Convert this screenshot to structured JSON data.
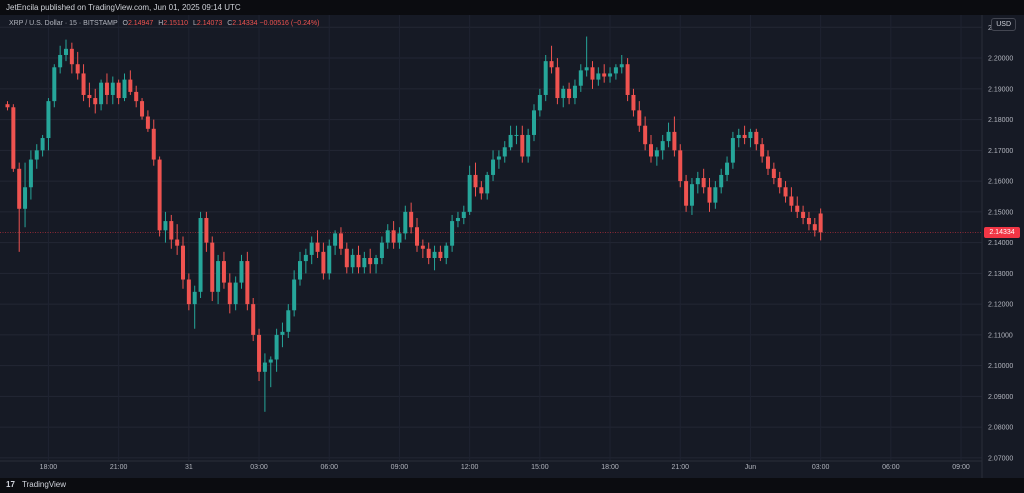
{
  "header": {
    "published_by": "JetEncila published on TradingView.com, Jun 01, 2025 09:14 UTC"
  },
  "legend": {
    "symbol": "XRP / U.S. Dollar · 15 · BITSTAMP",
    "open_label": "O",
    "open": "2.14947",
    "high_label": "H",
    "high": "2.15110",
    "low_label": "L",
    "low": "2.14073",
    "close_label": "C",
    "close": "2.14334",
    "change": "−0.00516 (−0.24%)"
  },
  "currency": "USD",
  "last_price_label": "2.14334",
  "footer": {
    "brand": "TradingView",
    "logo_glyph": "17"
  },
  "colors": {
    "up": "#26a69a",
    "down": "#ef5350",
    "background": "#161a25",
    "price_line": "#f23645"
  },
  "chart_data": {
    "type": "candlestick",
    "y_ticks": [
      "2.21000",
      "2.20000",
      "2.19000",
      "2.18000",
      "2.17000",
      "2.16000",
      "2.15000",
      "2.14000",
      "2.13000",
      "2.12000",
      "2.11000",
      "2.10000",
      "2.09000",
      "2.08000",
      "2.07000"
    ],
    "ylim": [
      2.069,
      2.214
    ],
    "x_ticks": [
      {
        "label": "18:00",
        "i": 7
      },
      {
        "label": "21:00",
        "i": 19
      },
      {
        "label": "31",
        "i": 31
      },
      {
        "label": "03:00",
        "i": 43
      },
      {
        "label": "06:00",
        "i": 55
      },
      {
        "label": "09:00",
        "i": 67
      },
      {
        "label": "12:00",
        "i": 79
      },
      {
        "label": "15:00",
        "i": 91
      },
      {
        "label": "18:00",
        "i": 103
      },
      {
        "label": "21:00",
        "i": 115
      },
      {
        "label": "Jun",
        "i": 127
      },
      {
        "label": "03:00",
        "i": 139
      },
      {
        "label": "06:00",
        "i": 151
      },
      {
        "label": "09:00",
        "i": 163
      }
    ],
    "last_price": 2.14334,
    "candles": [
      [
        2.185,
        2.186,
        2.183,
        2.184
      ],
      [
        2.184,
        2.185,
        2.163,
        2.164
      ],
      [
        2.164,
        2.166,
        2.137,
        2.151
      ],
      [
        2.151,
        2.166,
        2.145,
        2.158
      ],
      [
        2.158,
        2.17,
        2.154,
        2.167
      ],
      [
        2.167,
        2.172,
        2.164,
        2.17
      ],
      [
        2.17,
        2.175,
        2.168,
        2.174
      ],
      [
        2.174,
        2.187,
        2.17,
        2.186
      ],
      [
        2.186,
        2.198,
        2.184,
        2.197
      ],
      [
        2.197,
        2.204,
        2.195,
        2.201
      ],
      [
        2.201,
        2.206,
        2.199,
        2.203
      ],
      [
        2.203,
        2.205,
        2.195,
        2.198
      ],
      [
        2.198,
        2.202,
        2.193,
        2.195
      ],
      [
        2.195,
        2.198,
        2.186,
        2.188
      ],
      [
        2.188,
        2.192,
        2.184,
        2.187
      ],
      [
        2.187,
        2.19,
        2.182,
        2.185
      ],
      [
        2.185,
        2.193,
        2.183,
        2.192
      ],
      [
        2.192,
        2.195,
        2.185,
        2.188
      ],
      [
        2.188,
        2.194,
        2.185,
        2.192
      ],
      [
        2.192,
        2.193,
        2.185,
        2.187
      ],
      [
        2.187,
        2.195,
        2.186,
        2.193
      ],
      [
        2.193,
        2.196,
        2.188,
        2.189
      ],
      [
        2.189,
        2.191,
        2.184,
        2.186
      ],
      [
        2.186,
        2.187,
        2.18,
        2.181
      ],
      [
        2.181,
        2.183,
        2.176,
        2.177
      ],
      [
        2.177,
        2.18,
        2.165,
        2.167
      ],
      [
        2.167,
        2.168,
        2.142,
        2.144
      ],
      [
        2.144,
        2.15,
        2.14,
        2.147
      ],
      [
        2.147,
        2.149,
        2.138,
        2.141
      ],
      [
        2.141,
        2.146,
        2.136,
        2.139
      ],
      [
        2.139,
        2.142,
        2.125,
        2.128
      ],
      [
        2.128,
        2.13,
        2.118,
        2.12
      ],
      [
        2.12,
        2.126,
        2.112,
        2.124
      ],
      [
        2.124,
        2.15,
        2.122,
        2.148
      ],
      [
        2.148,
        2.15,
        2.137,
        2.14
      ],
      [
        2.14,
        2.142,
        2.121,
        2.124
      ],
      [
        2.124,
        2.136,
        2.12,
        2.134
      ],
      [
        2.134,
        2.137,
        2.125,
        2.127
      ],
      [
        2.127,
        2.13,
        2.117,
        2.12
      ],
      [
        2.12,
        2.129,
        2.118,
        2.127
      ],
      [
        2.127,
        2.136,
        2.125,
        2.134
      ],
      [
        2.134,
        2.137,
        2.118,
        2.12
      ],
      [
        2.12,
        2.122,
        2.108,
        2.11
      ],
      [
        2.11,
        2.112,
        2.095,
        2.098
      ],
      [
        2.098,
        2.104,
        2.085,
        2.101
      ],
      [
        2.101,
        2.103,
        2.093,
        2.102
      ],
      [
        2.102,
        2.112,
        2.098,
        2.11
      ],
      [
        2.11,
        2.114,
        2.106,
        2.111
      ],
      [
        2.111,
        2.12,
        2.109,
        2.118
      ],
      [
        2.118,
        2.131,
        2.116,
        2.128
      ],
      [
        2.128,
        2.137,
        2.126,
        2.134
      ],
      [
        2.134,
        2.138,
        2.13,
        2.136
      ],
      [
        2.136,
        2.142,
        2.133,
        2.14
      ],
      [
        2.14,
        2.144,
        2.135,
        2.137
      ],
      [
        2.137,
        2.14,
        2.128,
        2.13
      ],
      [
        2.13,
        2.141,
        2.128,
        2.139
      ],
      [
        2.139,
        2.144,
        2.136,
        2.143
      ],
      [
        2.143,
        2.145,
        2.136,
        2.138
      ],
      [
        2.138,
        2.14,
        2.13,
        2.132
      ],
      [
        2.132,
        2.138,
        2.13,
        2.136
      ],
      [
        2.136,
        2.139,
        2.13,
        2.132
      ],
      [
        2.132,
        2.137,
        2.13,
        2.135
      ],
      [
        2.135,
        2.138,
        2.13,
        2.133
      ],
      [
        2.133,
        2.136,
        2.13,
        2.135
      ],
      [
        2.135,
        2.142,
        2.133,
        2.14
      ],
      [
        2.14,
        2.146,
        2.138,
        2.144
      ],
      [
        2.144,
        2.147,
        2.138,
        2.14
      ],
      [
        2.14,
        2.145,
        2.138,
        2.143
      ],
      [
        2.143,
        2.152,
        2.141,
        2.15
      ],
      [
        2.15,
        2.153,
        2.143,
        2.145
      ],
      [
        2.145,
        2.148,
        2.137,
        2.139
      ],
      [
        2.139,
        2.141,
        2.135,
        2.138
      ],
      [
        2.138,
        2.14,
        2.133,
        2.135
      ],
      [
        2.135,
        2.139,
        2.131,
        2.137
      ],
      [
        2.137,
        2.139,
        2.134,
        2.135
      ],
      [
        2.135,
        2.14,
        2.133,
        2.139
      ],
      [
        2.139,
        2.149,
        2.137,
        2.147
      ],
      [
        2.147,
        2.15,
        2.145,
        2.148
      ],
      [
        2.148,
        2.152,
        2.146,
        2.15
      ],
      [
        2.15,
        2.165,
        2.149,
        2.162
      ],
      [
        2.162,
        2.166,
        2.155,
        2.158
      ],
      [
        2.158,
        2.16,
        2.154,
        2.156
      ],
      [
        2.156,
        2.163,
        2.154,
        2.162
      ],
      [
        2.162,
        2.17,
        2.16,
        2.167
      ],
      [
        2.167,
        2.17,
        2.164,
        2.168
      ],
      [
        2.168,
        2.173,
        2.166,
        2.171
      ],
      [
        2.171,
        2.178,
        2.17,
        2.175
      ],
      [
        2.175,
        2.178,
        2.172,
        2.175
      ],
      [
        2.175,
        2.178,
        2.166,
        2.168
      ],
      [
        2.168,
        2.177,
        2.166,
        2.175
      ],
      [
        2.175,
        2.185,
        2.173,
        2.183
      ],
      [
        2.183,
        2.19,
        2.181,
        2.188
      ],
      [
        2.188,
        2.201,
        2.186,
        2.199
      ],
      [
        2.199,
        2.204,
        2.195,
        2.197
      ],
      [
        2.197,
        2.2,
        2.185,
        2.187
      ],
      [
        2.187,
        2.191,
        2.184,
        2.19
      ],
      [
        2.19,
        2.192,
        2.185,
        2.187
      ],
      [
        2.187,
        2.193,
        2.185,
        2.191
      ],
      [
        2.191,
        2.198,
        2.189,
        2.196
      ],
      [
        2.196,
        2.207,
        2.194,
        2.197
      ],
      [
        2.197,
        2.199,
        2.19,
        2.193
      ],
      [
        2.193,
        2.197,
        2.191,
        2.195
      ],
      [
        2.195,
        2.198,
        2.192,
        2.194
      ],
      [
        2.194,
        2.197,
        2.192,
        2.195
      ],
      [
        2.195,
        2.198,
        2.193,
        2.197
      ],
      [
        2.197,
        2.201,
        2.195,
        2.198
      ],
      [
        2.198,
        2.2,
        2.186,
        2.188
      ],
      [
        2.188,
        2.19,
        2.181,
        2.183
      ],
      [
        2.183,
        2.186,
        2.176,
        2.178
      ],
      [
        2.178,
        2.181,
        2.17,
        2.172
      ],
      [
        2.172,
        2.175,
        2.166,
        2.168
      ],
      [
        2.168,
        2.171,
        2.165,
        2.17
      ],
      [
        2.17,
        2.175,
        2.167,
        2.173
      ],
      [
        2.173,
        2.179,
        2.171,
        2.176
      ],
      [
        2.176,
        2.181,
        2.168,
        2.17
      ],
      [
        2.17,
        2.172,
        2.158,
        2.16
      ],
      [
        2.16,
        2.162,
        2.15,
        2.152
      ],
      [
        2.152,
        2.161,
        2.149,
        2.159
      ],
      [
        2.159,
        2.163,
        2.156,
        2.161
      ],
      [
        2.161,
        2.164,
        2.156,
        2.158
      ],
      [
        2.158,
        2.161,
        2.15,
        2.153
      ],
      [
        2.153,
        2.16,
        2.151,
        2.158
      ],
      [
        2.158,
        2.164,
        2.156,
        2.162
      ],
      [
        2.162,
        2.168,
        2.16,
        2.166
      ],
      [
        2.166,
        2.176,
        2.164,
        2.174
      ],
      [
        2.174,
        2.177,
        2.171,
        2.175
      ],
      [
        2.175,
        2.178,
        2.172,
        2.174
      ],
      [
        2.174,
        2.177,
        2.171,
        2.176
      ],
      [
        2.176,
        2.177,
        2.17,
        2.172
      ],
      [
        2.172,
        2.174,
        2.166,
        2.168
      ],
      [
        2.168,
        2.17,
        2.162,
        2.164
      ],
      [
        2.164,
        2.166,
        2.159,
        2.161
      ],
      [
        2.161,
        2.163,
        2.156,
        2.158
      ],
      [
        2.158,
        2.16,
        2.153,
        2.155
      ],
      [
        2.155,
        2.158,
        2.15,
        2.152
      ],
      [
        2.152,
        2.155,
        2.148,
        2.15
      ],
      [
        2.15,
        2.152,
        2.146,
        2.148
      ],
      [
        2.148,
        2.15,
        2.144,
        2.146
      ],
      [
        2.146,
        2.148,
        2.142,
        2.144
      ],
      [
        2.14947,
        2.1511,
        2.14073,
        2.14334
      ]
    ]
  }
}
